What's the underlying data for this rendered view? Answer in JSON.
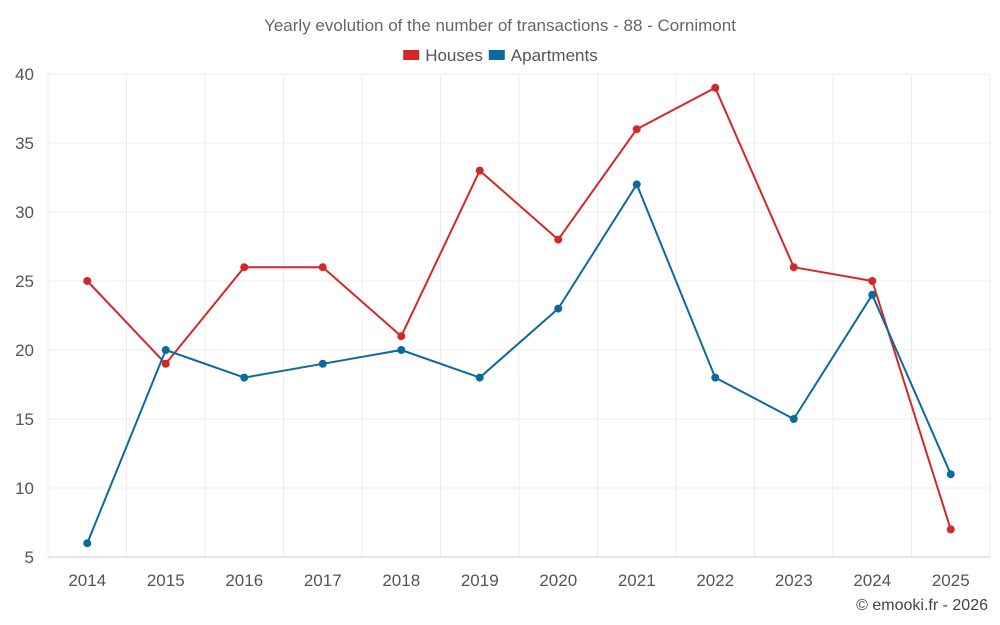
{
  "chart_data": {
    "type": "line",
    "title": "Yearly evolution of the number of transactions - 88 - Cornimont",
    "xlabel": "",
    "ylabel": "",
    "categories": [
      "2014",
      "2015",
      "2016",
      "2017",
      "2018",
      "2019",
      "2020",
      "2021",
      "2022",
      "2023",
      "2024",
      "2025"
    ],
    "ylim": [
      5,
      40
    ],
    "yticks": [
      5,
      10,
      15,
      20,
      25,
      30,
      35,
      40
    ],
    "grid": true,
    "legend_position": "top-center",
    "series": [
      {
        "name": "Houses",
        "color": "#d62728",
        "values": [
          25,
          19,
          26,
          26,
          21,
          33,
          28,
          36,
          39,
          26,
          25,
          7
        ]
      },
      {
        "name": "Apartments",
        "color": "#0d6a9c",
        "values": [
          6,
          20,
          18,
          19,
          20,
          18,
          23,
          32,
          18,
          15,
          24,
          11
        ]
      }
    ]
  },
  "credit": "© emooki.fr - 2026"
}
